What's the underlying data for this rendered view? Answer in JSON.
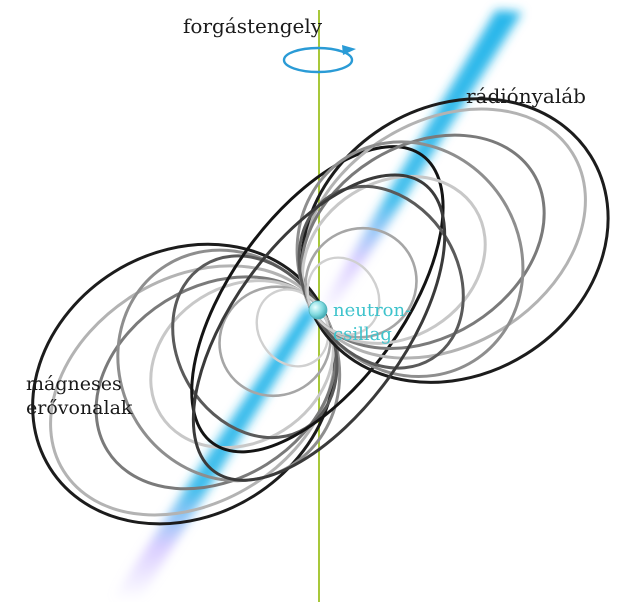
{
  "labels": {
    "rotation_axis": "forgástengely",
    "radio_beam": "rádiónyaláb",
    "field_lines": {
      "line1": "mágneses",
      "line2": "erővonalak"
    },
    "neutron_star": {
      "line1": "neutron-",
      "line2": "csillag"
    }
  },
  "colors": {
    "axis_line": "#a8c83a",
    "rotation_arrow": "#2a9bd6",
    "beam": "#27b6ea",
    "beam_glow": "#c9b8ff",
    "star": "#3ec3cc",
    "label_text": "#1a1a1a"
  }
}
